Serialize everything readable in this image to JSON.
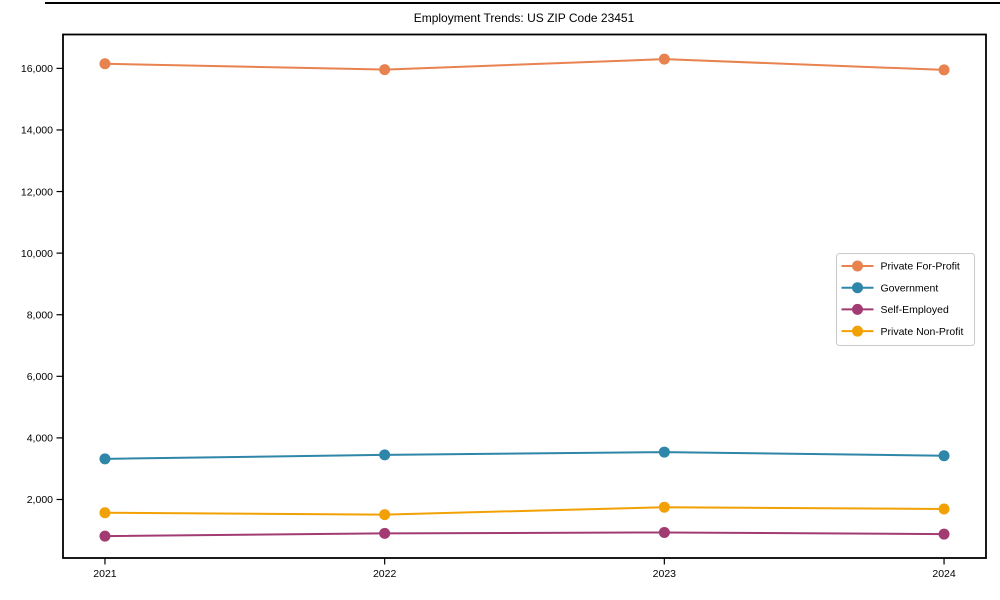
{
  "title": "Employment Trends: US ZIP Code 23451",
  "colors": {
    "private_for_profit": "#E8824E",
    "government": "#2E86A8",
    "self_employed": "#A23B72",
    "private_non_profit": "#F2A104",
    "axis": "#000000",
    "legend_border": "#C9C9C9",
    "background": "#FFFFFF"
  },
  "chart_data": {
    "type": "line",
    "title": "Employment Trends: US ZIP Code 23451",
    "xlabel": "",
    "ylabel": "",
    "x": [
      2021,
      2022,
      2023,
      2024
    ],
    "x_tick_labels": [
      "2021",
      "2022",
      "2023",
      "2024"
    ],
    "y_ticks": [
      2000,
      4000,
      6000,
      8000,
      10000,
      12000,
      14000,
      16000
    ],
    "y_tick_labels": [
      "2,000",
      "4,000",
      "6,000",
      "8,000",
      "10,000",
      "12,000",
      "14,000",
      "16,000"
    ],
    "xlim": [
      2020.85,
      2024.15
    ],
    "ylim": [
      100,
      17100
    ],
    "grid": false,
    "legend_position": "center right",
    "series": [
      {
        "name": "Private For-Profit",
        "color": "#E8824E",
        "values": [
          16150,
          15960,
          16300,
          15950
        ]
      },
      {
        "name": "Government",
        "color": "#2E86A8",
        "values": [
          3320,
          3450,
          3540,
          3420
        ]
      },
      {
        "name": "Self-Employed",
        "color": "#A23B72",
        "values": [
          810,
          900,
          930,
          875
        ]
      },
      {
        "name": "Private Non-Profit",
        "color": "#F2A104",
        "values": [
          1570,
          1510,
          1750,
          1690
        ]
      }
    ]
  }
}
